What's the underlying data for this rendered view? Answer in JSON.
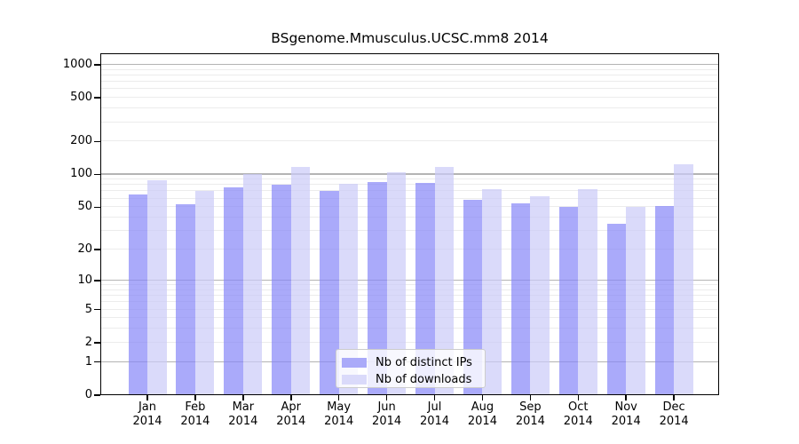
{
  "chart_data": {
    "type": "bar",
    "title": "BSgenome.Mmusculus.UCSC.mm8 2014",
    "categories": [
      "Jan",
      "Feb",
      "Mar",
      "Apr",
      "May",
      "Jun",
      "Jul",
      "Aug",
      "Sep",
      "Oct",
      "Nov",
      "Dec"
    ],
    "year": "2014",
    "series": [
      {
        "name": "Nb of distinct IPs",
        "color": "rgba(134,134,248,0.7)",
        "legend_color": "#aaaaf9",
        "values": [
          66,
          53,
          76,
          81,
          70,
          86,
          83,
          59,
          54,
          50,
          35,
          51
        ]
      },
      {
        "name": "Nb of downloads",
        "color": "rgba(202,202,248,0.7)",
        "legend_color": "#dadafa",
        "values": [
          89,
          70,
          100,
          117,
          82,
          104,
          118,
          73,
          63,
          73,
          50,
          124
        ]
      }
    ],
    "y_scale": "log1p",
    "y_ticks": [
      1000,
      500,
      200,
      100,
      50,
      20,
      10,
      5,
      2,
      1,
      0
    ],
    "y_major_gridlines": [
      1,
      10,
      100,
      1000
    ],
    "y_minor_gridlines": [
      2,
      3,
      4,
      5,
      6,
      7,
      8,
      9,
      20,
      30,
      40,
      50,
      60,
      70,
      80,
      90,
      200,
      300,
      400,
      500,
      600,
      700,
      800,
      900
    ],
    "ylim": [
      0,
      1270
    ],
    "grid": true,
    "legend_position": "bottom-center",
    "xlabel": "",
    "ylabel": ""
  },
  "colors": {
    "axis": "#000000",
    "major_grid": "#b4b4b4",
    "minor_grid": "#ececec",
    "legend_border": "#cccccc",
    "legend_bg": "rgba(255,255,255,0.8)",
    "text": "#000000",
    "background": "#ffffff"
  }
}
